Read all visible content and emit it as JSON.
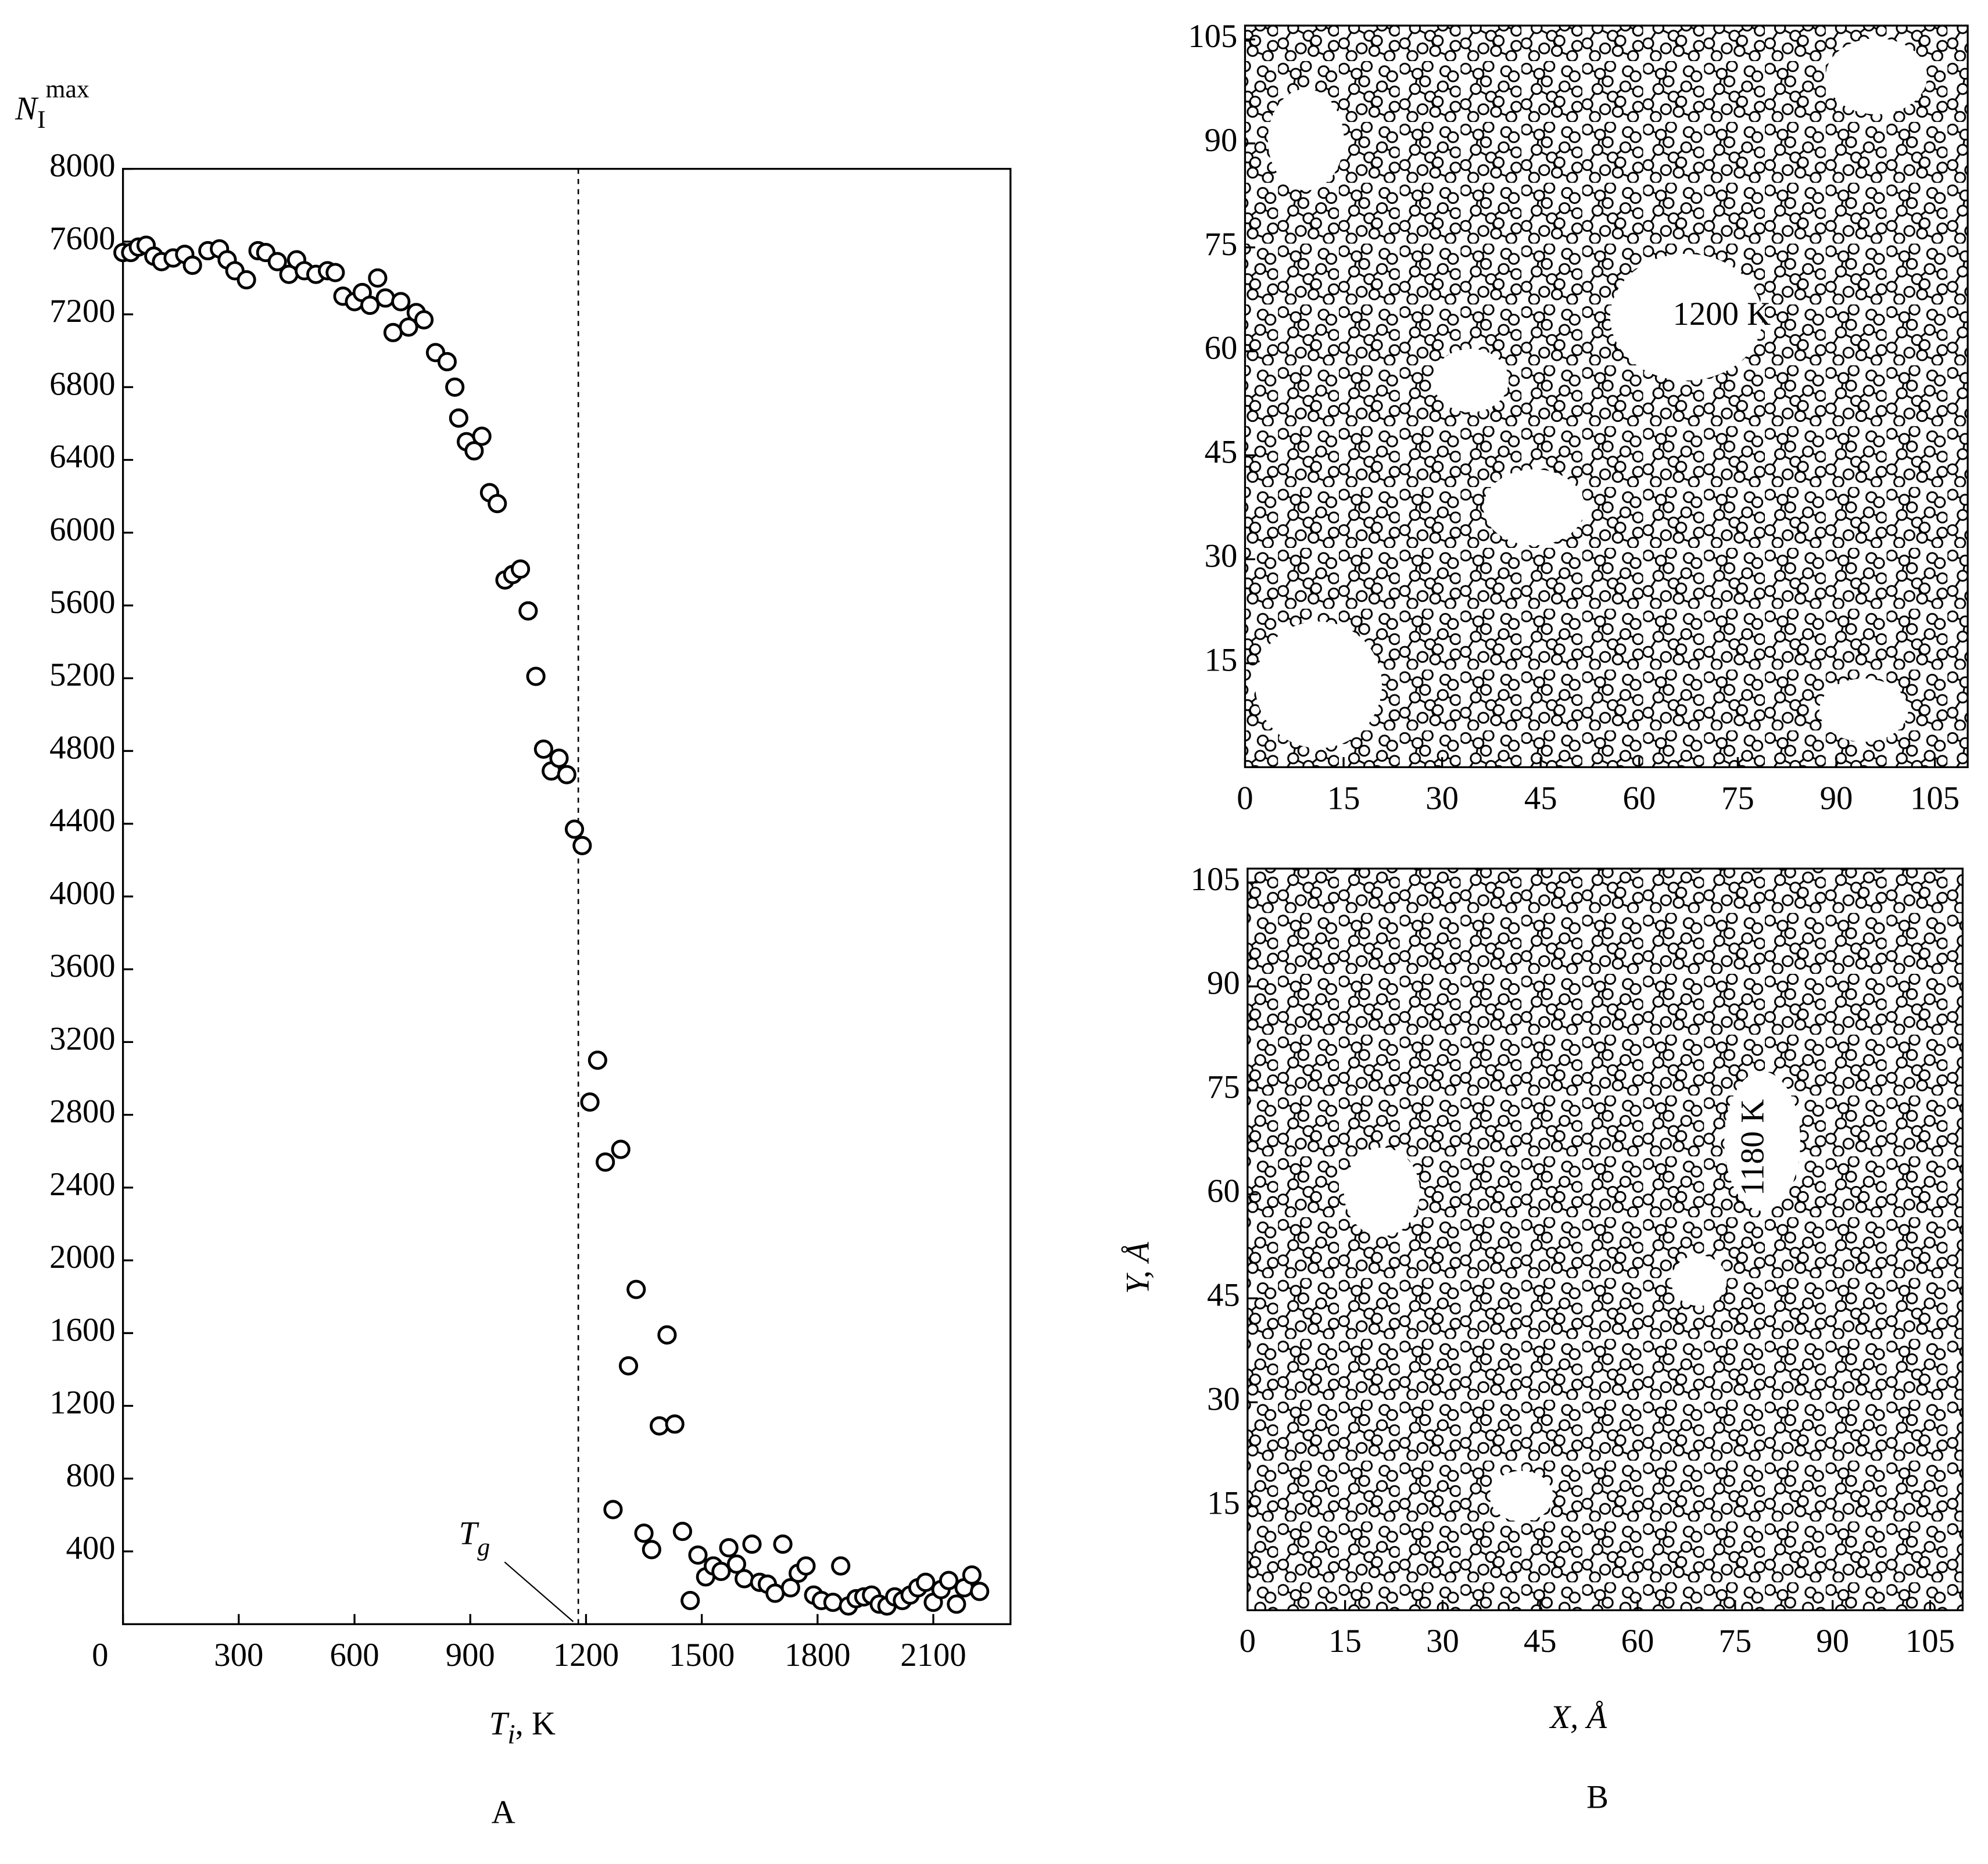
{
  "chart_data": [
    {
      "type": "scatter",
      "panel_label": "A",
      "ylabel": {
        "symbol": "N",
        "subscript": "I",
        "superscript": "max"
      },
      "xlabel": {
        "symbol": "T",
        "subscript": "i",
        "unit": ", K"
      },
      "annotation": {
        "symbol": "T",
        "subscript": "g",
        "x": 1180
      },
      "xlim": [
        0,
        2300
      ],
      "ylim": [
        0,
        8000
      ],
      "xticks": [
        0,
        300,
        600,
        900,
        1200,
        1500,
        1800,
        2100
      ],
      "yticks": [
        400,
        800,
        1200,
        1600,
        2000,
        2400,
        2800,
        3200,
        3600,
        4000,
        4400,
        4800,
        5200,
        5600,
        6000,
        6400,
        6800,
        7200,
        7600,
        8000
      ],
      "color": "#000000",
      "x": [
        0,
        20,
        40,
        60,
        80,
        100,
        130,
        160,
        180,
        220,
        250,
        270,
        290,
        320,
        350,
        370,
        400,
        430,
        450,
        470,
        500,
        530,
        550,
        570,
        600,
        620,
        640,
        660,
        680,
        700,
        720,
        740,
        760,
        780,
        810,
        840,
        860,
        870,
        890,
        910,
        930,
        950,
        970,
        990,
        1010,
        1030,
        1050,
        1070,
        1090,
        1110,
        1130,
        1150,
        1170,
        1190,
        1210,
        1230,
        1250,
        1270,
        1290,
        1310,
        1330,
        1350,
        1370,
        1390,
        1410,
        1430,
        1450,
        1470,
        1490,
        1510,
        1530,
        1550,
        1570,
        1590,
        1610,
        1630,
        1650,
        1670,
        1690,
        1710,
        1730,
        1750,
        1770,
        1790,
        1810,
        1840,
        1860,
        1880,
        1900,
        1920,
        1940,
        1960,
        1980,
        2000,
        2020,
        2040,
        2060,
        2080,
        2100,
        2120,
        2140,
        2160,
        2180,
        2200,
        2220
      ],
      "values": [
        7540,
        7540,
        7570,
        7580,
        7520,
        7490,
        7510,
        7530,
        7470,
        7550,
        7560,
        7500,
        7440,
        7390,
        7550,
        7540,
        7490,
        7420,
        7500,
        7440,
        7420,
        7440,
        7430,
        7300,
        7270,
        7320,
        7250,
        7400,
        7290,
        7100,
        7270,
        7130,
        7210,
        7170,
        6990,
        6940,
        6800,
        6630,
        6500,
        6450,
        6530,
        6220,
        6160,
        5740,
        5770,
        5800,
        5570,
        5210,
        4810,
        4690,
        4760,
        4670,
        4370,
        4280,
        2870,
        3100,
        2540,
        630,
        2610,
        1420,
        1840,
        500,
        410,
        1090,
        1590,
        1100,
        510,
        130,
        380,
        260,
        320,
        290,
        420,
        330,
        250,
        440,
        230,
        220,
        170,
        440,
        200,
        280,
        320,
        160,
        130,
        120,
        320,
        100,
        140,
        150,
        160,
        110,
        100,
        150,
        130,
        160,
        200,
        230,
        120,
        190,
        240,
        110,
        200,
        270,
        180
      ]
    },
    {
      "type": "configuration",
      "panel_label": "B",
      "annotation": "1200 K",
      "xlim": [
        0,
        110
      ],
      "ylim": [
        0,
        107
      ],
      "xticks": [
        0,
        15,
        30,
        45,
        60,
        75,
        90,
        105
      ],
      "yticks": [
        15,
        30,
        45,
        60,
        75,
        90,
        105
      ]
    },
    {
      "type": "configuration",
      "annotation": "1180 K",
      "xlabel": "X, Å",
      "ylabel": "Y, Å",
      "xlim": [
        0,
        110
      ],
      "ylim": [
        0,
        107
      ],
      "xticks": [
        0,
        15,
        30,
        45,
        60,
        75,
        90,
        105
      ],
      "yticks": [
        15,
        30,
        45,
        60,
        75,
        90,
        105
      ]
    }
  ]
}
